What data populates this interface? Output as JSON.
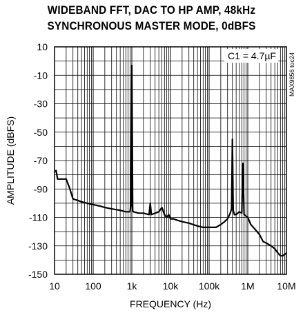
{
  "chart_data": {
    "type": "line",
    "title_line1": "WIDEBAND FFT, DAC TO HP AMP, 48kHz",
    "title_line2": "SYNCHRONOUS MASTER MODE, 0dBFS",
    "xlabel": "FREQUENCY (Hz)",
    "ylabel": "AMPLITUDE (dBFS)",
    "x_scale": "log",
    "xlim": [
      10,
      10000000
    ],
    "ylim": [
      -150,
      10
    ],
    "x_ticks": [
      10,
      100,
      1000,
      10000,
      100000,
      1000000,
      10000000
    ],
    "x_tick_labels": [
      "10",
      "100",
      "1k",
      "10k",
      "100k",
      "1M",
      "10M"
    ],
    "y_ticks": [
      10,
      -10,
      -30,
      -50,
      -70,
      -90,
      -110,
      -130,
      -150
    ],
    "y_tick_labels": [
      "10",
      "-10",
      "-30",
      "-50",
      "-70",
      "-90",
      "-110",
      "-130",
      "-150"
    ],
    "grid": true,
    "annotation": "C1 = 4.7µF",
    "part_number": "MAX9856 toc24",
    "series": [
      {
        "x": [
          10,
          11,
          12,
          20,
          25,
          30,
          40,
          50,
          70,
          100,
          150,
          200,
          300,
          500,
          700,
          900,
          950,
          980,
          1000,
          1020,
          1050,
          1100,
          1500,
          2000,
          2800,
          3000,
          3200,
          4000,
          5000,
          6000,
          7000,
          8000,
          9000,
          10000,
          12000,
          15000,
          20000,
          30000,
          50000,
          70000,
          100000,
          150000,
          200000,
          250000,
          300000,
          350000,
          380000,
          400000,
          420000,
          450000,
          500000,
          600000,
          700000,
          750000,
          800000,
          1000000,
          1200000,
          1500000,
          2000000,
          2500000,
          3000000,
          4000000,
          5000000,
          6000000,
          7000000,
          8000000,
          10000000
        ],
        "y": [
          -78,
          -77,
          -83,
          -83,
          -90,
          -97,
          -98,
          -99,
          -100,
          -101,
          -102,
          -103,
          -104,
          -105,
          -106,
          -106,
          -100,
          -40,
          -3,
          -40,
          -105,
          -106,
          -107,
          -107,
          -108,
          -100,
          -108,
          -107,
          -106,
          -103,
          -108,
          -110,
          -108,
          -111,
          -111,
          -112,
          -113,
          -114,
          -116,
          -117,
          -117,
          -117,
          -115,
          -113,
          -111,
          -107,
          -104,
          -55,
          -105,
          -108,
          -108,
          -106,
          -107,
          -72,
          -108,
          -110,
          -115,
          -118,
          -122,
          -127,
          -128,
          -130,
          -132,
          -135,
          -137,
          -137,
          -135
        ]
      }
    ]
  }
}
